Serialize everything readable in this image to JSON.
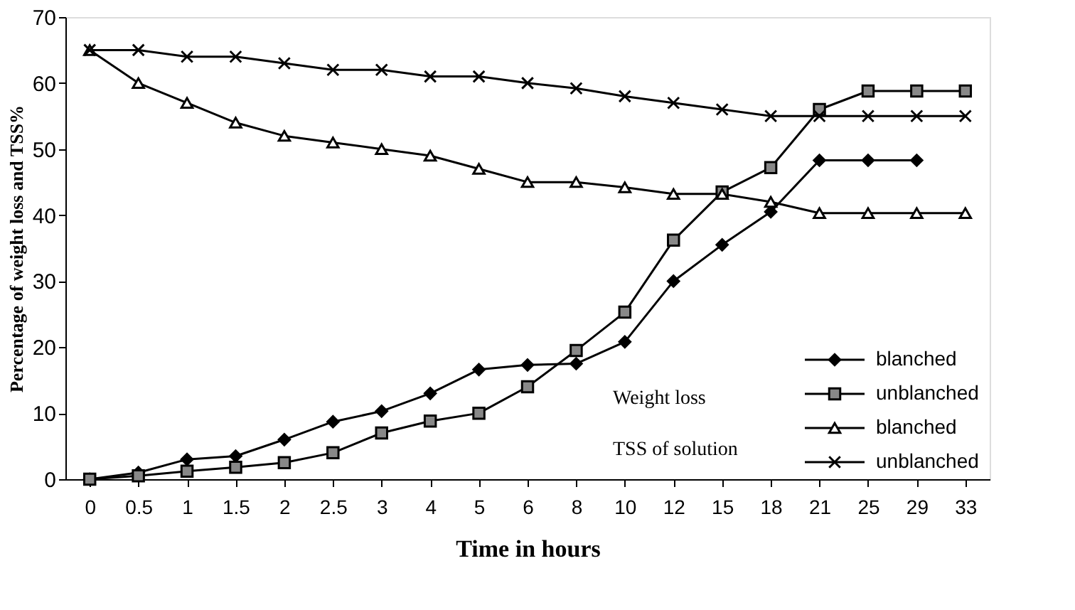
{
  "chart_data": {
    "type": "line",
    "xlabel": "Time in hours",
    "ylabel": "Percentage of weight loss and TSS%",
    "categories": [
      "0",
      "0.5",
      "1",
      "1.5",
      "2",
      "2.5",
      "3",
      "4",
      "5",
      "6",
      "8",
      "10",
      "12",
      "15",
      "18",
      "21",
      "25",
      "29",
      "33"
    ],
    "series": [
      {
        "name": "blanched",
        "color": "#000000",
        "marker": "diamond",
        "values": [
          0,
          1,
          3,
          3.5,
          6,
          8.7,
          10.3,
          13,
          16.6,
          17.3,
          17.5,
          20.8,
          30,
          35.5,
          40.5,
          48.3,
          48.3,
          48.3,
          null
        ]
      },
      {
        "name": "unblanched",
        "color": "#000000",
        "marker": "square",
        "values": [
          0,
          0.5,
          1.2,
          1.8,
          2.5,
          4,
          7,
          8.8,
          10,
          14,
          19.5,
          25.3,
          36.2,
          43.5,
          47.2,
          56,
          58.8,
          58.8,
          58.8
        ]
      },
      {
        "name": "blanched",
        "color": "#000000",
        "marker": "triangle",
        "values": [
          65,
          60,
          57,
          54,
          52,
          51,
          50,
          49,
          47,
          45,
          45,
          44.2,
          43.2,
          43.2,
          42,
          40.3,
          40.3,
          40.3,
          40.3
        ]
      },
      {
        "name": "unblanched",
        "color": "#000000",
        "marker": "cross",
        "values": [
          65,
          65,
          64,
          64,
          63,
          62,
          62,
          61,
          61,
          60,
          59.2,
          58,
          57,
          56,
          55,
          55,
          55,
          55,
          55
        ]
      }
    ],
    "ylim": [
      0,
      70
    ],
    "yticks": [
      0,
      10,
      20,
      30,
      40,
      50,
      60,
      70
    ],
    "annotations": [
      "Weight loss",
      "TSS of solution"
    ],
    "grid": false,
    "legend": "bottom right",
    "line_style": "solid"
  }
}
